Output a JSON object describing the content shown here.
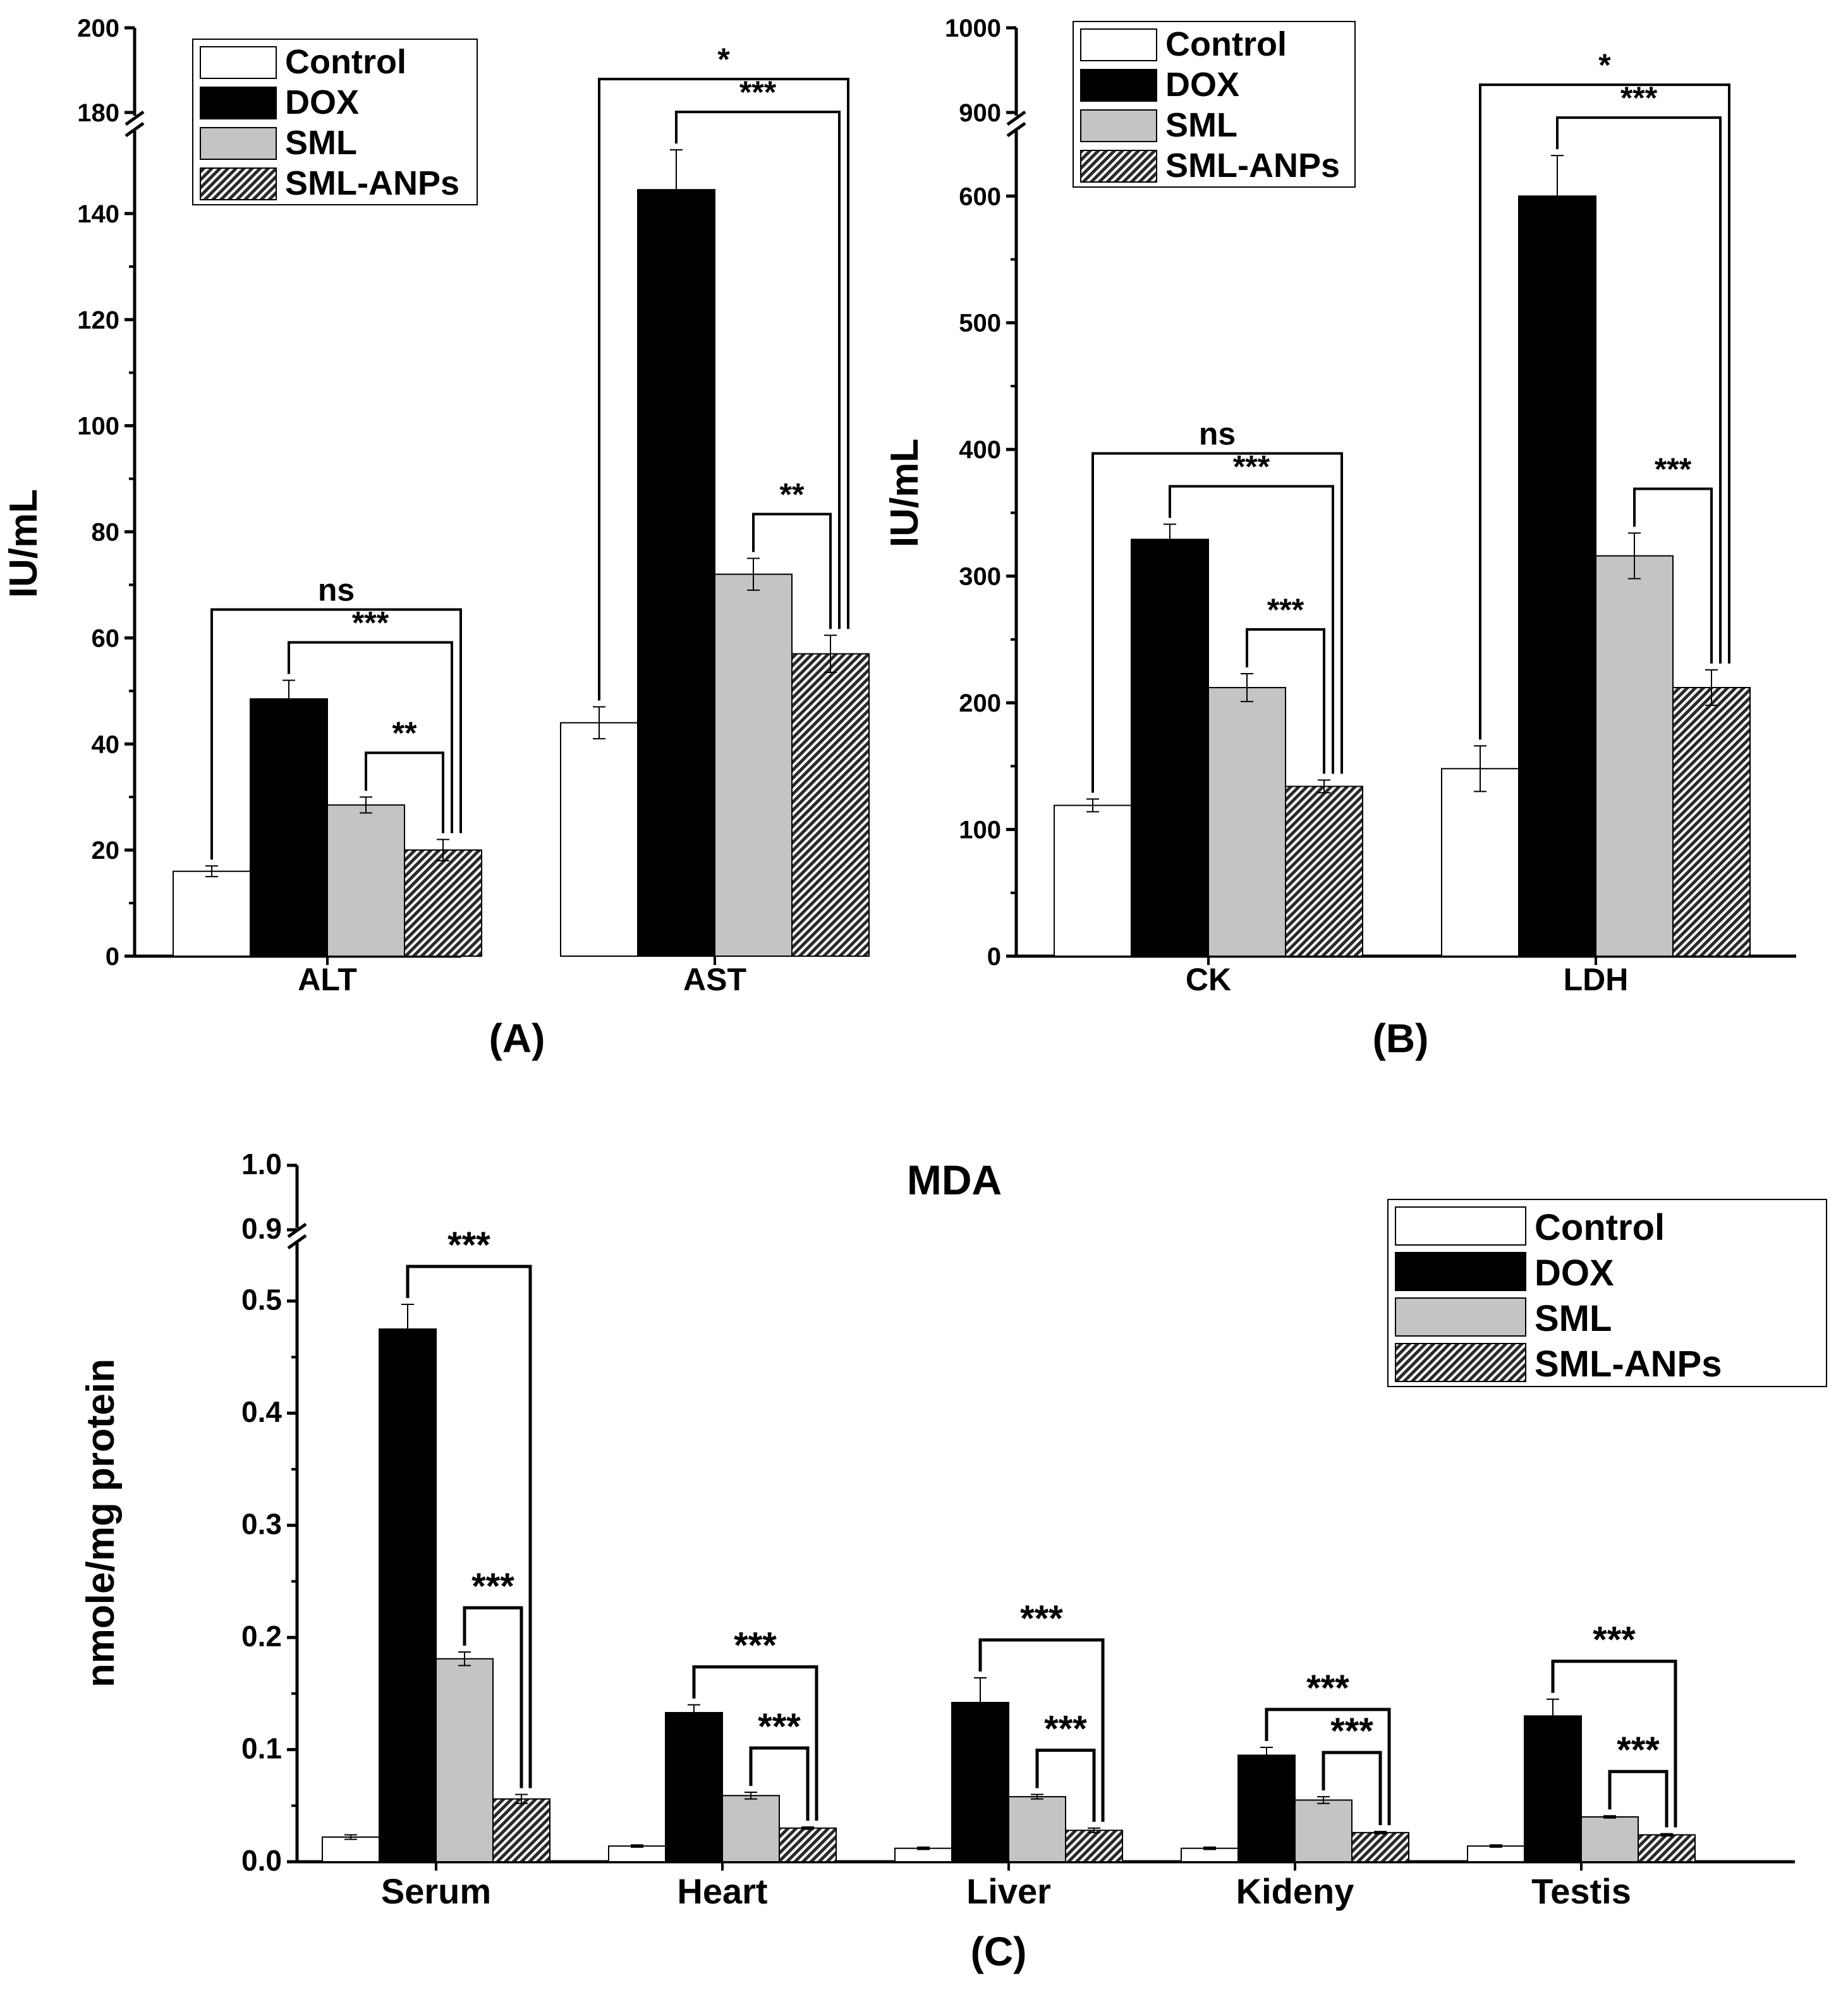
{
  "colors": {
    "control": "#ffffff",
    "dox": "#000000",
    "sml": "#c4c4c4",
    "sml_anps": "#3a3a3a"
  },
  "chart_data": [
    {
      "type": "bar",
      "panel_label": "(A)",
      "title": "",
      "xlabel": "",
      "ylabel": "IU/mL",
      "categories": [
        "ALT",
        "AST"
      ],
      "series": [
        {
          "name": "Control",
          "values": [
            16,
            44
          ],
          "errors": [
            1,
            3
          ]
        },
        {
          "name": "DOX",
          "values": [
            48.5,
            144.5
          ],
          "errors": [
            3.5,
            7.5
          ]
        },
        {
          "name": "SML",
          "values": [
            28.5,
            72
          ],
          "errors": [
            1.5,
            3
          ]
        },
        {
          "name": "SML-ANPs",
          "values": [
            20,
            57
          ],
          "errors": [
            2,
            3.5
          ]
        }
      ],
      "yticks": [
        "0",
        "20",
        "40",
        "60",
        "80",
        "100",
        "120",
        "140",
        "180",
        "200"
      ],
      "ylim": [
        0,
        200
      ],
      "axis_break": [
        150,
        180
      ],
      "legend": [
        "Control",
        "DOX",
        "SML",
        "SML-ANPs"
      ],
      "significance": [
        {
          "label": "ns",
          "group": "ALT",
          "from": "Control",
          "to": "SML-ANPs"
        },
        {
          "label": "***",
          "group": "ALT",
          "from": "DOX",
          "to": "SML-ANPs"
        },
        {
          "label": "**",
          "group": "ALT",
          "from": "SML",
          "to": "SML-ANPs"
        },
        {
          "label": "*",
          "group": "AST",
          "from": "Control",
          "to": "SML-ANPs"
        },
        {
          "label": "***",
          "group": "AST",
          "from": "DOX",
          "to": "SML-ANPs"
        },
        {
          "label": "**",
          "group": "AST",
          "from": "SML",
          "to": "SML-ANPs"
        }
      ]
    },
    {
      "type": "bar",
      "panel_label": "(B)",
      "title": "",
      "xlabel": "",
      "ylabel": "IU/mL",
      "categories": [
        "CK",
        "LDH"
      ],
      "series": [
        {
          "name": "Control",
          "values": [
            119,
            148
          ],
          "errors": [
            5,
            18
          ]
        },
        {
          "name": "DOX",
          "values": [
            329,
            600
          ],
          "errors": [
            12,
            32
          ]
        },
        {
          "name": "SML",
          "values": [
            212,
            316
          ],
          "errors": [
            11,
            18
          ]
        },
        {
          "name": "SML-ANPs",
          "values": [
            134,
            212
          ],
          "errors": [
            5,
            14
          ]
        }
      ],
      "yticks": [
        "0",
        "100",
        "200",
        "300",
        "400",
        "500",
        "600",
        "900",
        "1000"
      ],
      "ylim": [
        0,
        1000
      ],
      "axis_break": [
        650,
        900
      ],
      "legend": [
        "Control",
        "DOX",
        "SML",
        "SML-ANPs"
      ],
      "significance": [
        {
          "label": "ns",
          "group": "CK",
          "from": "Control",
          "to": "SML-ANPs"
        },
        {
          "label": "***",
          "group": "CK",
          "from": "DOX",
          "to": "SML-ANPs"
        },
        {
          "label": "***",
          "group": "CK",
          "from": "SML",
          "to": "SML-ANPs"
        },
        {
          "label": "*",
          "group": "LDH",
          "from": "Control",
          "to": "SML-ANPs"
        },
        {
          "label": "***",
          "group": "LDH",
          "from": "DOX",
          "to": "SML-ANPs"
        },
        {
          "label": "***",
          "group": "LDH",
          "from": "SML",
          "to": "SML-ANPs"
        }
      ]
    },
    {
      "type": "bar",
      "panel_label": "(C)",
      "title": "MDA",
      "xlabel": "",
      "ylabel": "nmole/mg protein",
      "categories": [
        "Serum",
        "Heart",
        "Liver",
        "Kideny",
        "Testis"
      ],
      "series": [
        {
          "name": "Control",
          "values": [
            0.022,
            0.014,
            0.012,
            0.012,
            0.014
          ],
          "errors": [
            0.002,
            0.001,
            0.001,
            0.001,
            0.001
          ]
        },
        {
          "name": "DOX",
          "values": [
            0.475,
            0.133,
            0.142,
            0.095,
            0.13
          ],
          "errors": [
            0.022,
            0.007,
            0.022,
            0.007,
            0.015
          ]
        },
        {
          "name": "SML",
          "values": [
            0.181,
            0.059,
            0.058,
            0.055,
            0.04
          ],
          "errors": [
            0.006,
            0.003,
            0.002,
            0.003,
            0.001
          ]
        },
        {
          "name": "SML-ANPs",
          "values": [
            0.056,
            0.03,
            0.028,
            0.026,
            0.024
          ],
          "errors": [
            0.004,
            0.001,
            0.002,
            0.001,
            0.001
          ]
        }
      ],
      "yticks": [
        "0.0",
        "0.1",
        "0.2",
        "0.3",
        "0.4",
        "0.5",
        "0.9",
        "1.0"
      ],
      "ylim": [
        0,
        1.0
      ],
      "axis_break": [
        0.55,
        0.9
      ],
      "legend": [
        "Control",
        "DOX",
        "SML",
        "SML-ANPs"
      ],
      "significance": [
        {
          "label": "***",
          "group": "Serum",
          "from": "DOX",
          "to": "SML-ANPs"
        },
        {
          "label": "***",
          "group": "Serum",
          "from": "SML",
          "to": "SML-ANPs"
        },
        {
          "label": "***",
          "group": "Heart",
          "from": "DOX",
          "to": "SML-ANPs"
        },
        {
          "label": "***",
          "group": "Heart",
          "from": "SML",
          "to": "SML-ANPs"
        },
        {
          "label": "***",
          "group": "Liver",
          "from": "DOX",
          "to": "SML-ANPs"
        },
        {
          "label": "***",
          "group": "Liver",
          "from": "SML",
          "to": "SML-ANPs"
        },
        {
          "label": "***",
          "group": "Kideny",
          "from": "DOX",
          "to": "SML-ANPs"
        },
        {
          "label": "***",
          "group": "Kideny",
          "from": "SML",
          "to": "SML-ANPs"
        },
        {
          "label": "***",
          "group": "Testis",
          "from": "DOX",
          "to": "SML-ANPs"
        },
        {
          "label": "***",
          "group": "Testis",
          "from": "SML",
          "to": "SML-ANPs"
        }
      ]
    }
  ]
}
